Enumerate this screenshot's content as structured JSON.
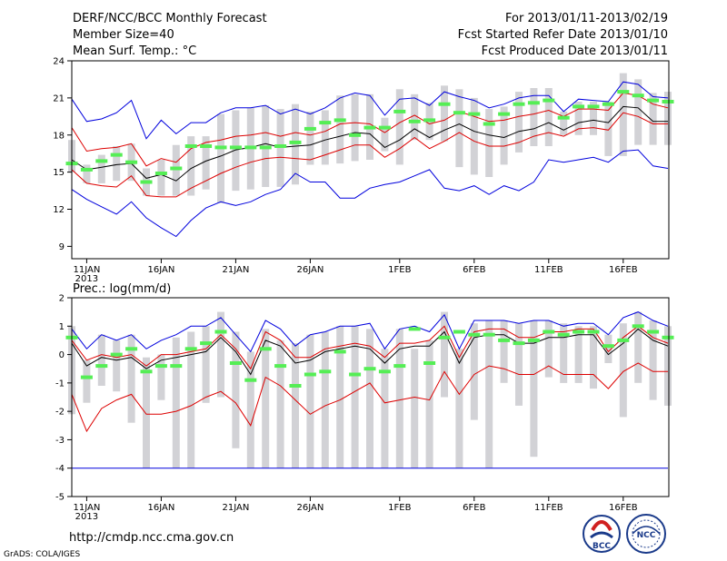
{
  "header": {
    "title": "DERF/NCC/BCC Monthly Forecast",
    "member_size": "Member Size=40",
    "variable": "Mean Surf. Temp.: °C",
    "period": "For 2013/01/11-2013/02/19",
    "started": "Fcst Started Refer Date 2013/01/10",
    "produced": "Fcst Produced Date 2013/01/11"
  },
  "footer": {
    "url": "http://cmdp.ncc.cma.gov.cn",
    "grads": "GrADS: COLA/IGES",
    "logo_bcc": "BCC",
    "logo_ncc": "NCC"
  },
  "colors": {
    "max_min": "#0000dd",
    "percentile": "#dd0000",
    "mean": "#000000",
    "bar": "#d2d2d6",
    "marker": "#55ee55"
  },
  "chart_data": [
    {
      "type": "line",
      "title": "",
      "xlabel": "",
      "ylabel": "",
      "x_tick_labels": [
        "11JAN",
        "16JAN",
        "21JAN",
        "26JAN",
        "1FEB",
        "6FEB",
        "11FEB",
        "16FEB"
      ],
      "x_tick_days": [
        1,
        6,
        11,
        16,
        22,
        27,
        32,
        37
      ],
      "x_year_label": "2013",
      "xlim": [
        1,
        40
      ],
      "ylim": [
        8,
        24
      ],
      "y_ticks": [
        9,
        12,
        15,
        18,
        21,
        24
      ],
      "series": [
        {
          "name": "max",
          "values": [
            20.9,
            19.1,
            19.3,
            19.8,
            20.8,
            17.7,
            19.2,
            18.1,
            19.0,
            19.0,
            19.8,
            20.2,
            20.2,
            20.4,
            19.7,
            20.1,
            19.7,
            20.2,
            21.0,
            21.4,
            21.2,
            19.6,
            20.9,
            21.0,
            20.4,
            21.5,
            21.1,
            20.8,
            20.2,
            20.5,
            21.0,
            21.2,
            21.2,
            19.9,
            20.9,
            20.8,
            20.7,
            22.3,
            22.1,
            21.1,
            21.0
          ]
        },
        {
          "name": "p90",
          "values": [
            18.6,
            16.7,
            16.9,
            17.0,
            17.3,
            15.5,
            16.1,
            15.8,
            16.9,
            17.4,
            17.6,
            17.9,
            18.0,
            18.2,
            17.9,
            18.2,
            18.0,
            18.3,
            18.9,
            19.0,
            18.9,
            18.2,
            19.0,
            19.6,
            18.9,
            19.2,
            19.9,
            19.5,
            19.1,
            19.2,
            19.5,
            19.7,
            20.0,
            19.5,
            20.1,
            20.1,
            20.0,
            21.4,
            21.2,
            20.5,
            20.2
          ]
        },
        {
          "name": "mean",
          "values": [
            16.0,
            15.2,
            15.4,
            15.6,
            15.7,
            14.5,
            14.8,
            14.3,
            15.3,
            15.9,
            16.3,
            16.8,
            17.0,
            17.3,
            17.0,
            17.1,
            17.2,
            17.6,
            17.9,
            18.2,
            18.1,
            17.0,
            17.6,
            18.5,
            17.8,
            18.4,
            18.9,
            18.3,
            18.0,
            17.8,
            18.3,
            18.5,
            19.0,
            18.4,
            19.0,
            19.2,
            19.0,
            20.3,
            20.2,
            19.1,
            19.1
          ]
        },
        {
          "name": "p10",
          "values": [
            15.2,
            14.1,
            13.9,
            13.8,
            14.7,
            13.1,
            13.0,
            13.0,
            13.7,
            14.3,
            14.9,
            15.4,
            15.8,
            16.1,
            16.2,
            16.1,
            16.0,
            16.4,
            16.8,
            17.2,
            17.2,
            16.2,
            16.9,
            17.8,
            16.9,
            17.5,
            18.2,
            17.5,
            17.1,
            17.1,
            17.4,
            17.9,
            18.2,
            17.9,
            18.5,
            18.6,
            18.4,
            19.8,
            19.5,
            18.9,
            18.9
          ]
        },
        {
          "name": "min",
          "values": [
            13.6,
            12.8,
            12.2,
            11.6,
            12.6,
            11.3,
            10.5,
            9.8,
            11.1,
            12.1,
            12.6,
            12.3,
            12.6,
            13.2,
            13.6,
            14.9,
            14.2,
            14.2,
            12.9,
            12.9,
            13.7,
            14.0,
            14.2,
            14.7,
            15.2,
            13.7,
            13.5,
            13.9,
            13.2,
            13.9,
            13.5,
            14.2,
            16.0,
            15.8,
            16.0,
            16.2,
            15.8,
            16.7,
            16.8,
            15.5,
            15.3
          ]
        },
        {
          "name": "range_low",
          "values": [
            15.0,
            14.1,
            14.1,
            14.3,
            14.3,
            13.1,
            13.1,
            13.1,
            13.1,
            13.6,
            12.5,
            13.5,
            13.6,
            13.8,
            13.8,
            14.0,
            15.6,
            15.6,
            15.7,
            15.9,
            16.0,
            16.7,
            15.6,
            17.6,
            17.6,
            17.5,
            15.4,
            14.8,
            14.6,
            15.6,
            16.6,
            17.1,
            17.1,
            18.0,
            18.0,
            18.0,
            16.3,
            16.3,
            17.2,
            17.2,
            17.2
          ]
        },
        {
          "name": "range_high",
          "values": [
            17.6,
            15.6,
            16.4,
            17.1,
            17.3,
            15.3,
            16.0,
            17.2,
            17.9,
            17.9,
            19.7,
            20.0,
            20.2,
            20.4,
            20.1,
            20.5,
            19.9,
            20.0,
            21.2,
            21.3,
            21.3,
            19.4,
            21.7,
            21.3,
            20.6,
            22.0,
            21.7,
            21.0,
            20.1,
            20.3,
            21.5,
            21.8,
            21.8,
            19.9,
            20.7,
            20.7,
            20.7,
            23.0,
            22.5,
            21.4,
            21.5
          ]
        },
        {
          "name": "observed",
          "values": [
            15.7,
            15.2,
            15.9,
            16.4,
            15.8,
            14.2,
            14.9,
            15.3,
            17.1,
            17.1,
            17.0,
            17.0,
            17.0,
            17.0,
            17.1,
            17.4,
            18.5,
            19.0,
            19.2,
            18.0,
            18.6,
            18.6,
            19.9,
            19.1,
            19.2,
            20.5,
            19.8,
            19.7,
            18.9,
            19.7,
            20.5,
            20.6,
            20.8,
            19.4,
            20.3,
            20.3,
            20.5,
            21.5,
            21.2,
            20.8,
            20.7
          ]
        }
      ]
    },
    {
      "type": "line",
      "title": "Prec.: log(mm/d)",
      "xlabel": "",
      "ylabel": "",
      "x_tick_labels": [
        "11JAN",
        "16JAN",
        "21JAN",
        "26JAN",
        "1FEB",
        "6FEB",
        "11FEB",
        "16FEB"
      ],
      "x_tick_days": [
        1,
        6,
        11,
        16,
        22,
        27,
        32,
        37
      ],
      "x_year_label": "2013",
      "xlim": [
        1,
        40
      ],
      "ylim": [
        -5,
        2
      ],
      "y_ticks": [
        -5,
        -4,
        -3,
        -2,
        -1,
        0,
        1,
        2
      ],
      "series": [
        {
          "name": "max",
          "values": [
            0.9,
            0.2,
            0.7,
            0.5,
            0.7,
            0.2,
            0.5,
            0.7,
            1.0,
            1.0,
            1.3,
            0.7,
            0.1,
            1.2,
            0.9,
            0.3,
            0.7,
            0.8,
            1.0,
            1.0,
            1.1,
            0.2,
            0.9,
            1.0,
            0.8,
            1.4,
            0.2,
            1.2,
            1.2,
            1.2,
            1.1,
            1.2,
            1.2,
            1.0,
            1.1,
            1.1,
            0.7,
            1.3,
            1.5,
            1.2,
            1.0
          ]
        },
        {
          "name": "p90",
          "values": [
            0.5,
            -0.2,
            0.0,
            -0.1,
            0.0,
            -0.4,
            0.0,
            0.0,
            0.1,
            0.2,
            0.7,
            0.2,
            -0.5,
            0.8,
            0.5,
            -0.1,
            -0.1,
            0.2,
            0.3,
            0.4,
            0.3,
            -0.1,
            0.4,
            0.4,
            0.5,
            1.0,
            -0.1,
            0.8,
            0.9,
            0.9,
            0.6,
            0.6,
            0.8,
            0.8,
            0.9,
            0.9,
            0.1,
            0.6,
            1.0,
            0.6,
            0.4
          ]
        },
        {
          "name": "mean",
          "values": [
            0.4,
            -0.4,
            -0.1,
            -0.2,
            -0.1,
            -0.5,
            -0.2,
            -0.1,
            0.0,
            0.1,
            0.6,
            0.1,
            -0.7,
            0.5,
            0.3,
            -0.3,
            -0.2,
            0.1,
            0.2,
            0.3,
            0.2,
            -0.3,
            0.2,
            0.3,
            0.3,
            0.8,
            -0.3,
            0.6,
            0.7,
            0.7,
            0.4,
            0.4,
            0.6,
            0.6,
            0.7,
            0.7,
            0.0,
            0.4,
            0.9,
            0.5,
            0.3
          ]
        },
        {
          "name": "p10",
          "values": [
            -1.4,
            -2.7,
            -1.9,
            -1.6,
            -1.4,
            -2.1,
            -2.1,
            -2.0,
            -1.8,
            -1.5,
            -1.3,
            -1.7,
            -2.5,
            -0.8,
            -1.1,
            -1.6,
            -2.1,
            -1.8,
            -1.6,
            -1.3,
            -1.0,
            -1.7,
            -1.6,
            -1.5,
            -1.6,
            -0.6,
            -1.4,
            -0.7,
            -0.4,
            -0.5,
            -0.7,
            -0.7,
            -0.4,
            -0.7,
            -0.7,
            -0.7,
            -1.2,
            -0.6,
            -0.3,
            -0.6,
            -0.6
          ]
        },
        {
          "name": "min",
          "values": [
            -4,
            -4,
            -4,
            -4,
            -4,
            -4,
            -4,
            -4,
            -4,
            -4,
            -4,
            -4,
            -4,
            -4,
            -4,
            -4,
            -4,
            -4,
            -4,
            -4,
            -4,
            -4,
            -4,
            -4,
            -4,
            -4,
            -4,
            -4,
            -4,
            -4,
            -4,
            -4,
            -4,
            -4,
            -4,
            -4,
            -4,
            -4,
            -4,
            -4,
            -4
          ]
        },
        {
          "name": "range_low",
          "values": [
            -2.1,
            -1.7,
            -1.1,
            -1.3,
            -2.4,
            -4.0,
            -1.6,
            -4.0,
            -4.0,
            -1.7,
            -1.5,
            -3.3,
            -4.0,
            -4.0,
            -4.0,
            -4.0,
            -4.0,
            -4.0,
            -4.0,
            -4.0,
            -4.0,
            -4.0,
            -4.0,
            -4.0,
            -4.0,
            -1.5,
            -4.0,
            -2.3,
            -4.0,
            -1.0,
            -1.8,
            -3.6,
            -0.8,
            -1.0,
            -1.0,
            -1.2,
            -0.3,
            -2.2,
            -1.0,
            -1.6,
            -1.8
          ]
        },
        {
          "name": "range_high",
          "values": [
            1.0,
            -0.2,
            0.7,
            0.5,
            0.7,
            -0.1,
            0.0,
            0.6,
            0.8,
            1.0,
            1.5,
            0.8,
            0.1,
            0.9,
            0.5,
            0.4,
            0.7,
            0.8,
            1.0,
            1.0,
            0.9,
            0.2,
            0.9,
            0.2,
            0.5,
            1.5,
            0.2,
            1.1,
            1.2,
            1.2,
            1.1,
            1.2,
            1.2,
            1.1,
            1.0,
            1.0,
            0.7,
            1.1,
            1.5,
            1.2,
            1.0
          ]
        },
        {
          "name": "observed",
          "values": [
            0.6,
            -0.8,
            -0.4,
            0.0,
            0.2,
            -0.6,
            -0.4,
            -0.4,
            0.2,
            0.4,
            0.8,
            -0.3,
            -0.9,
            0.2,
            -0.4,
            -1.1,
            -0.7,
            -0.6,
            0.1,
            -0.7,
            -0.5,
            -0.6,
            -0.4,
            0.9,
            -0.3,
            0.6,
            0.8,
            0.7,
            0.7,
            0.5,
            0.4,
            0.5,
            0.8,
            0.7,
            0.8,
            0.8,
            0.3,
            0.5,
            1.0,
            0.8,
            0.6
          ]
        }
      ]
    }
  ]
}
